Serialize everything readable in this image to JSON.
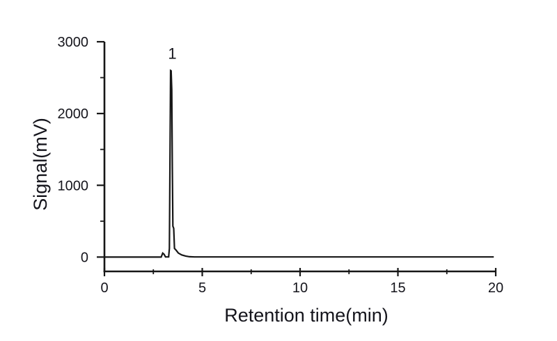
{
  "figure": {
    "background": "#ffffff",
    "line_color": "#161616",
    "text_color": "#15151c"
  },
  "chart_data": {
    "type": "line",
    "title": "",
    "xlabel": "Retention time(min)",
    "ylabel": "Signal(mV)",
    "xlim": [
      0,
      20
    ],
    "ylim": [
      -200,
      3000
    ],
    "grid": false,
    "legend": false,
    "x_major_ticks": [
      0,
      5,
      10,
      15,
      20
    ],
    "x_minor_ticks": [
      2.5,
      7.5,
      12.5,
      17.5
    ],
    "y_major_ticks": [
      0,
      1000,
      2000,
      3000
    ],
    "y_minor_ticks": [
      500,
      1500,
      2500
    ],
    "series": [
      {
        "name": "chromatogram-signal",
        "color": "#161616",
        "points": [
          [
            0.0,
            0
          ],
          [
            2.9,
            0
          ],
          [
            2.98,
            55
          ],
          [
            3.05,
            38
          ],
          [
            3.12,
            2
          ],
          [
            3.28,
            2
          ],
          [
            3.32,
            120
          ],
          [
            3.38,
            2600
          ],
          [
            3.41,
            2595
          ],
          [
            3.44,
            2330
          ],
          [
            3.47,
            1250
          ],
          [
            3.5,
            430
          ],
          [
            3.54,
            400
          ],
          [
            3.58,
            120
          ],
          [
            3.65,
            100
          ],
          [
            3.78,
            55
          ],
          [
            3.95,
            30
          ],
          [
            4.15,
            14
          ],
          [
            4.35,
            5
          ],
          [
            4.6,
            2
          ],
          [
            19.9,
            2
          ]
        ]
      }
    ],
    "annotations": [
      {
        "label": "1",
        "x": 3.4,
        "y": 2600
      }
    ]
  }
}
